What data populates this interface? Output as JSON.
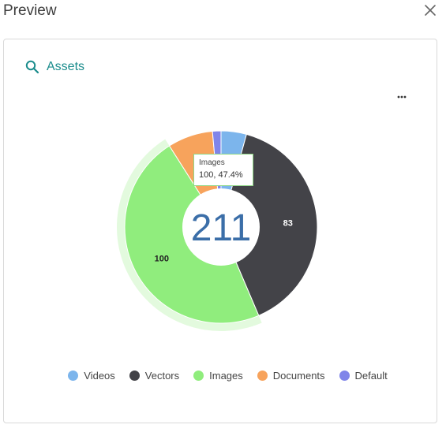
{
  "dialog": {
    "title": "Preview"
  },
  "card": {
    "title": "Assets"
  },
  "chart_data": {
    "type": "pie",
    "subtype": "donut",
    "title": "",
    "total_label": "211",
    "categories": [
      "Videos",
      "Vectors",
      "Images",
      "Documents",
      "Default"
    ],
    "values": [
      9,
      83,
      100,
      16,
      3
    ],
    "colors": [
      "#7cb5ec",
      "#434348",
      "#90ed7d",
      "#f7a35c",
      "#8085e9"
    ],
    "data_labels": [
      {
        "category": "Vectors",
        "text": "83"
      },
      {
        "category": "Images",
        "text": "100"
      }
    ],
    "hovered": "Images",
    "legend_position": "bottom",
    "tooltip": {
      "title": "Images",
      "value": "100, 47.4%"
    }
  },
  "icons": {
    "close": "close-icon",
    "search": "search-icon",
    "more": "more-horizontal-icon"
  }
}
